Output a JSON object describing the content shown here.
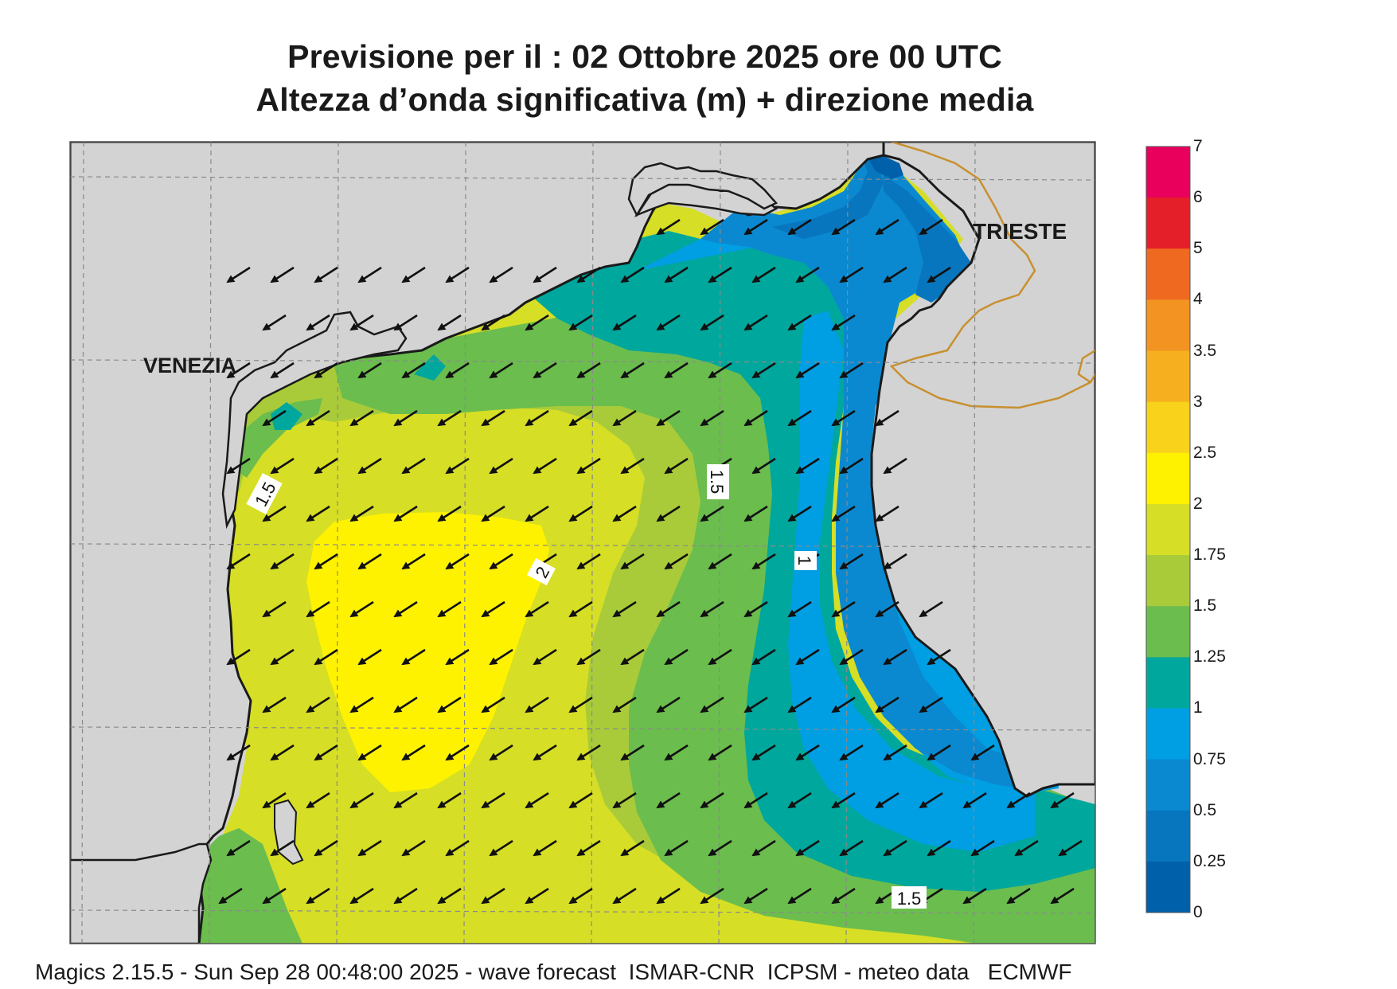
{
  "header": {
    "title_line1": "Previsione per il  :  02  Ottobre  2025   ore 00 UTC",
    "title_line2": "Altezza d’onda significativa (m) + direzione media"
  },
  "map": {
    "place_labels": {
      "venezia": "VENEZIA",
      "trieste": "TRIESTE"
    },
    "contour_labels": {
      "left": "1.5",
      "center": "1.5",
      "max": "2",
      "east": "1",
      "south": "1.5"
    },
    "colors": {
      "land": "#d3d3d3",
      "coast": "#1a1a1a",
      "grid": "#8a8a8a",
      "border": "#c8902f",
      "arrow": "#111111"
    },
    "mean_wave_direction": "north-east (arrows point toward south-west)"
  },
  "colorbar": {
    "labels": [
      "7",
      "6",
      "5",
      "4",
      "3.5",
      "3",
      "2.5",
      "2",
      "1.75",
      "1.5",
      "1.25",
      "1",
      "0.75",
      "0.5",
      "0.25",
      "0"
    ],
    "colors": [
      "#e8005c",
      "#e51f2a",
      "#ef6a20",
      "#f29322",
      "#f6b01f",
      "#f9d21b",
      "#fff200",
      "#d6de25",
      "#a9cb39",
      "#6bbd4e",
      "#00a79d",
      "#009ee2",
      "#0b89d0",
      "#0776be",
      "#0061aa"
    ]
  },
  "footer": {
    "text": "Magics 2.15.5 - Sun Sep 28 00:48:00 2025 - wave forecast  ISMAR-CNR  ICPSM - meteo data   ECMWF"
  }
}
